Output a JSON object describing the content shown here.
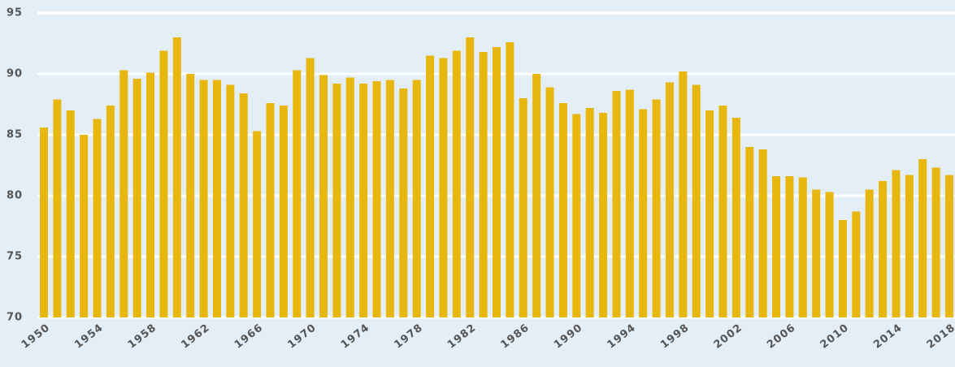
{
  "chart_data": {
    "type": "bar",
    "categories": [
      "1950",
      null,
      null,
      null,
      "1954",
      null,
      null,
      null,
      "1958",
      null,
      null,
      null,
      "1962",
      null,
      null,
      null,
      "1966",
      null,
      null,
      null,
      "1970",
      null,
      null,
      null,
      "1974",
      null,
      null,
      null,
      "1978",
      null,
      null,
      null,
      "1982",
      null,
      null,
      null,
      "1986",
      null,
      null,
      null,
      "1990",
      null,
      null,
      null,
      "1994",
      null,
      null,
      null,
      "1998",
      null,
      null,
      null,
      "2002",
      null,
      null,
      null,
      "2006",
      null,
      null,
      null,
      "2010",
      null,
      null,
      null,
      "2014",
      null,
      null,
      null,
      "2018"
    ],
    "values": [
      85.6,
      87.9,
      87.0,
      85.0,
      86.3,
      87.4,
      90.3,
      89.6,
      90.1,
      91.9,
      93.0,
      90.0,
      89.5,
      89.5,
      89.1,
      88.4,
      85.3,
      87.6,
      87.4,
      90.3,
      91.3,
      89.9,
      89.2,
      89.7,
      89.2,
      89.4,
      89.5,
      88.8,
      89.5,
      91.5,
      91.3,
      91.9,
      93.0,
      91.8,
      92.2,
      92.6,
      88.0,
      90.0,
      88.9,
      87.6,
      86.7,
      87.2,
      86.8,
      88.6,
      88.7,
      87.1,
      87.9,
      89.3,
      90.2,
      89.1,
      87.0,
      87.4,
      86.4,
      84.0,
      83.8,
      81.6,
      81.6,
      81.5,
      80.5,
      80.3,
      78.0,
      78.7,
      80.5,
      81.2,
      82.1,
      81.7,
      83.0,
      82.3,
      81.7
    ],
    "color": "#e8b70e",
    "ylim": [
      70,
      95
    ],
    "yticks": [
      70,
      75,
      80,
      85,
      90,
      95
    ],
    "grid": true
  }
}
